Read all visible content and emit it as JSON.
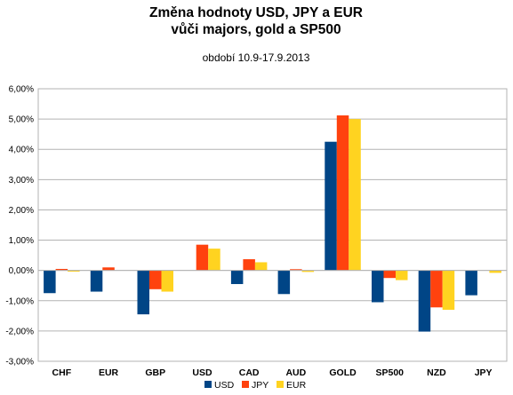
{
  "chart_data": {
    "type": "bar",
    "title": "Změna hodnoty USD, JPY a EUR",
    "title_line2": "vůči majors, gold a SP500",
    "subtitle": "období 10.9-17.9.2013",
    "xlabel": "",
    "ylabel": "",
    "categories": [
      "CHF",
      "EUR",
      "GBP",
      "USD",
      "CAD",
      "AUD",
      "GOLD",
      "SP500",
      "NZD",
      "JPY"
    ],
    "series": [
      {
        "name": "USD",
        "color": "#004586",
        "values": [
          -0.75,
          -0.7,
          -1.45,
          null,
          -0.45,
          -0.78,
          4.25,
          -1.05,
          -2.02,
          -0.82
        ]
      },
      {
        "name": "JPY",
        "color": "#ff420e",
        "values": [
          0.05,
          0.1,
          -0.62,
          0.85,
          0.37,
          0.04,
          5.12,
          -0.25,
          -1.22,
          null
        ]
      },
      {
        "name": "EUR",
        "color": "#ffd320",
        "values": [
          -0.04,
          null,
          -0.7,
          0.72,
          0.27,
          -0.05,
          5.0,
          -0.32,
          -1.3,
          -0.08
        ]
      }
    ],
    "ylim": [
      -3,
      6
    ],
    "yticks": [
      -3,
      -2,
      -1,
      0,
      1,
      2,
      3,
      4,
      5,
      6
    ],
    "ytick_labels": [
      "-3,00%",
      "-2,00%",
      "-1,00%",
      "0,00%",
      "1,00%",
      "2,00%",
      "3,00%",
      "4,00%",
      "5,00%",
      "6,00%"
    ],
    "grid": true,
    "legend_position": "bottom"
  }
}
